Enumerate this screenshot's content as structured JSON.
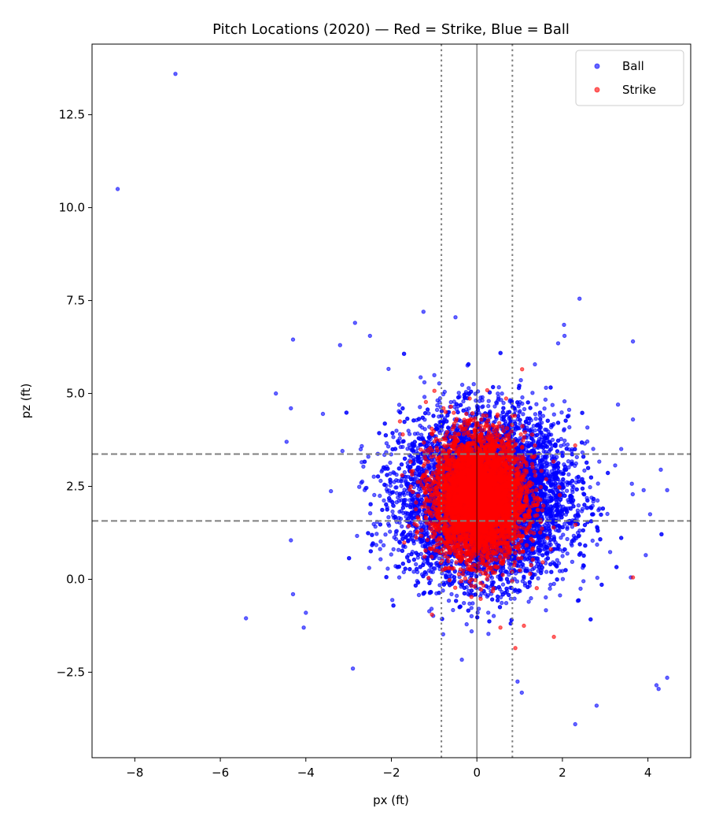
{
  "chart_data": {
    "type": "scatter",
    "title": "Pitch Locations (2020) — Red = Strike, Blue = Ball",
    "xlabel": "px (ft)",
    "ylabel": "pz (ft)",
    "xlim": [
      -9.0,
      5.0
    ],
    "ylim": [
      -4.8,
      14.4
    ],
    "xticks": [
      -8,
      -6,
      -4,
      -2,
      0,
      2,
      4
    ],
    "xtick_labels": [
      "−8",
      "−6",
      "−4",
      "−2",
      "0",
      "2",
      "4"
    ],
    "yticks": [
      -2.5,
      0.0,
      2.5,
      5.0,
      7.5,
      10.0,
      12.5
    ],
    "ytick_labels": [
      "−2.5",
      "0.0",
      "2.5",
      "5.0",
      "7.5",
      "10.0",
      "12.5"
    ],
    "grid": false,
    "legend_position": "top-right",
    "reference_lines": {
      "horizontal_dashed": [
        3.37,
        1.57
      ],
      "vertical_dotted": [
        -0.83,
        0.83
      ],
      "vertical_solid": [
        0.0
      ]
    },
    "series": [
      {
        "name": "Ball",
        "color": "#0000ff",
        "distribution": {
          "center": [
            0.2,
            2.2
          ],
          "spread": [
            1.55,
            1.75
          ],
          "approx_count": 9000
        },
        "outliers": [
          [
            -7.05,
            13.6
          ],
          [
            -8.4,
            10.5
          ],
          [
            2.4,
            7.55
          ],
          [
            -5.4,
            -1.05
          ],
          [
            -4.7,
            5.0
          ],
          [
            -4.3,
            6.45
          ],
          [
            -4.35,
            4.6
          ],
          [
            -4.45,
            3.7
          ],
          [
            -4.35,
            1.05
          ],
          [
            -4.3,
            -0.4
          ],
          [
            -4.05,
            -1.3
          ],
          [
            -4.0,
            -0.9
          ],
          [
            -2.9,
            -2.4
          ],
          [
            -1.25,
            7.2
          ],
          [
            -0.5,
            7.05
          ],
          [
            -2.85,
            6.9
          ],
          [
            3.65,
            6.4
          ],
          [
            4.3,
            2.95
          ],
          [
            4.45,
            2.4
          ],
          [
            4.45,
            -2.65
          ],
          [
            4.2,
            -2.85
          ],
          [
            4.25,
            -2.95
          ],
          [
            2.3,
            -3.9
          ],
          [
            2.8,
            -3.4
          ],
          [
            1.05,
            -3.05
          ],
          [
            0.95,
            -2.75
          ],
          [
            3.6,
            0.05
          ],
          [
            3.95,
            0.65
          ],
          [
            4.05,
            1.75
          ],
          [
            3.9,
            2.4
          ],
          [
            3.3,
            4.7
          ],
          [
            -3.6,
            4.45
          ],
          [
            -3.2,
            6.3
          ],
          [
            -2.5,
            6.55
          ],
          [
            1.9,
            6.35
          ],
          [
            2.05,
            6.55
          ],
          [
            3.65,
            4.3
          ]
        ]
      },
      {
        "name": "Strike",
        "color": "#ff0000",
        "distribution": {
          "center": [
            0.05,
            2.2
          ],
          "spread": [
            0.85,
            1.3
          ],
          "approx_count": 5000
        },
        "outliers": [
          [
            3.65,
            0.05
          ],
          [
            0.9,
            -1.85
          ],
          [
            1.1,
            -1.25
          ],
          [
            0.55,
            -1.3
          ],
          [
            -1.05,
            -0.95
          ],
          [
            1.8,
            -1.55
          ],
          [
            2.3,
            3.6
          ],
          [
            -1.8,
            4.25
          ],
          [
            -1.75,
            2.8
          ]
        ]
      }
    ]
  }
}
